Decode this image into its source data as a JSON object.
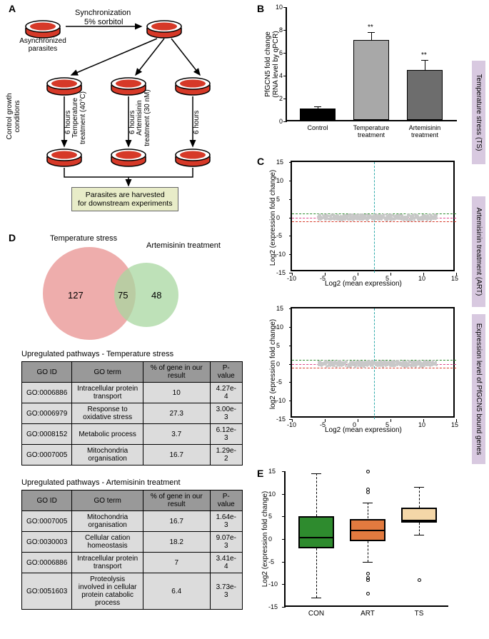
{
  "panelA": {
    "label": "A",
    "top_arrow_text": "Synchronization",
    "top_arrow_sub": "5% sorbitol",
    "left_dish_label": "Asynchronized\nparasites",
    "branches": [
      {
        "label": "Control growth\nconditions",
        "duration": "6 hours"
      },
      {
        "label": "Temperature\ntreatment (40°C)",
        "duration": "6 hours"
      },
      {
        "label": "Artemisinin\ntreatment (30 nM)",
        "duration": "6 hours"
      }
    ],
    "harvest_label": "Parasites are harvested\nfor downstream experiments",
    "dish_color": "#d63928",
    "dish_border": "#000000"
  },
  "panelB": {
    "label": "B",
    "ylabel": "PfGCN5 fold change\n(RNA level by qPCR)",
    "ymax": 10,
    "ytick_step": 2,
    "bars": [
      {
        "name": "Control",
        "value": 1.0,
        "err": 0.1,
        "color": "#000000",
        "stars": ""
      },
      {
        "name": "Temperature\ntreatment",
        "value": 7.0,
        "err": 0.6,
        "color": "#a8a8a8",
        "stars": "**"
      },
      {
        "name": "Artemisinin\ntreatment",
        "value": 4.4,
        "err": 0.8,
        "color": "#6d6d6d",
        "stars": "**"
      }
    ]
  },
  "panelC": {
    "label": "C",
    "plots": [
      {
        "side": "Temperature stress (TS)",
        "ylabel": "Log2 (expression fold change)",
        "xlabel": "Log2 (mean expression)"
      },
      {
        "side": "Artemisinin treatment (ART)",
        "ylabel": "log2 (epression fold change)",
        "xlabel": "Log2 (mean expression)"
      }
    ],
    "xlim": [
      -10,
      15
    ],
    "ylim": [
      -15,
      15
    ],
    "xticks": [
      -10,
      -5,
      0,
      5,
      10,
      15
    ],
    "yticks": [
      -15,
      -10,
      -5,
      0,
      5,
      10,
      15
    ],
    "guide_y_pos": 1,
    "guide_y_neg": -1,
    "guide_x": 2.5,
    "colors": {
      "bg_points": "#c8c8c8",
      "up": "#2e8b2e",
      "down": "#d63928",
      "guide_x": "#2ca9a9",
      "guide_y_pos": "#2e8b2e",
      "guide_y_neg": "#d63928"
    }
  },
  "panelD": {
    "label": "D",
    "venn": {
      "left_title": "Temperature stress",
      "right_title": "Artemisinin treatment",
      "left_only": 127,
      "overlap": 75,
      "right_only": 48,
      "left_color": "#e89290",
      "right_color": "#a8d7a0"
    },
    "table1": {
      "title": "Upregulated pathways - Temperature stress",
      "cols": [
        "GO ID",
        "GO term",
        "% of gene in our result",
        "P-value"
      ],
      "rows": [
        [
          "GO:0006886",
          "Intracellular protein transport",
          "10",
          "4.27e-4"
        ],
        [
          "GO:0006979",
          "Response to oxidative stress",
          "27.3",
          "3.00e-3"
        ],
        [
          "GO:0008152",
          "Metabolic process",
          "3.7",
          "6.12e-3"
        ],
        [
          "GO:0007005",
          "Mitochondria organisation",
          "16.7",
          "1.29e-2"
        ]
      ]
    },
    "table2": {
      "title": "Upregulated pathways - Artemisinin treatment",
      "cols": [
        "GO ID",
        "GO term",
        "% of gene in our result",
        "P-value"
      ],
      "rows": [
        [
          "GO:0007005",
          "Mitochondria organisation",
          "16.7",
          "1.64e-3"
        ],
        [
          "GO:0030003",
          "Cellular cation homeostasis",
          "18.2",
          "9.07e-3"
        ],
        [
          "GO:0006886",
          "Intracellular protein transport",
          "7",
          "3.41e-4"
        ],
        [
          "GO:0051603",
          "Proteolysis involved in cellular protein catabolic process",
          "6.4",
          "3.73e-3"
        ]
      ]
    }
  },
  "panelE": {
    "label": "E",
    "side": "Expression level of PfGCN5 bound genes",
    "ylabel": "Log2 (expression fold change)",
    "ylim": [
      -15,
      15
    ],
    "yticks": [
      -15,
      -10,
      -5,
      0,
      5,
      10,
      15
    ],
    "boxes": [
      {
        "name": "CON",
        "q1": -2,
        "median": 0.4,
        "q3": 5,
        "whisker_lo": -13,
        "whisker_hi": 14.5,
        "color": "#2e8b2e",
        "outliers": []
      },
      {
        "name": "ART",
        "q1": -0.5,
        "median": 2,
        "q3": 4.5,
        "whisker_lo": -5,
        "whisker_hi": 8,
        "color": "#e27a3f",
        "outliers": [
          15,
          11,
          10.5,
          -7.5,
          -8.5,
          -9,
          -12
        ]
      },
      {
        "name": "TS",
        "q1": 3.7,
        "median": 4.2,
        "q3": 7,
        "whisker_lo": 1,
        "whisker_hi": 11.5,
        "color": "#f4d7a8",
        "outliers": [
          -9
        ]
      }
    ]
  }
}
